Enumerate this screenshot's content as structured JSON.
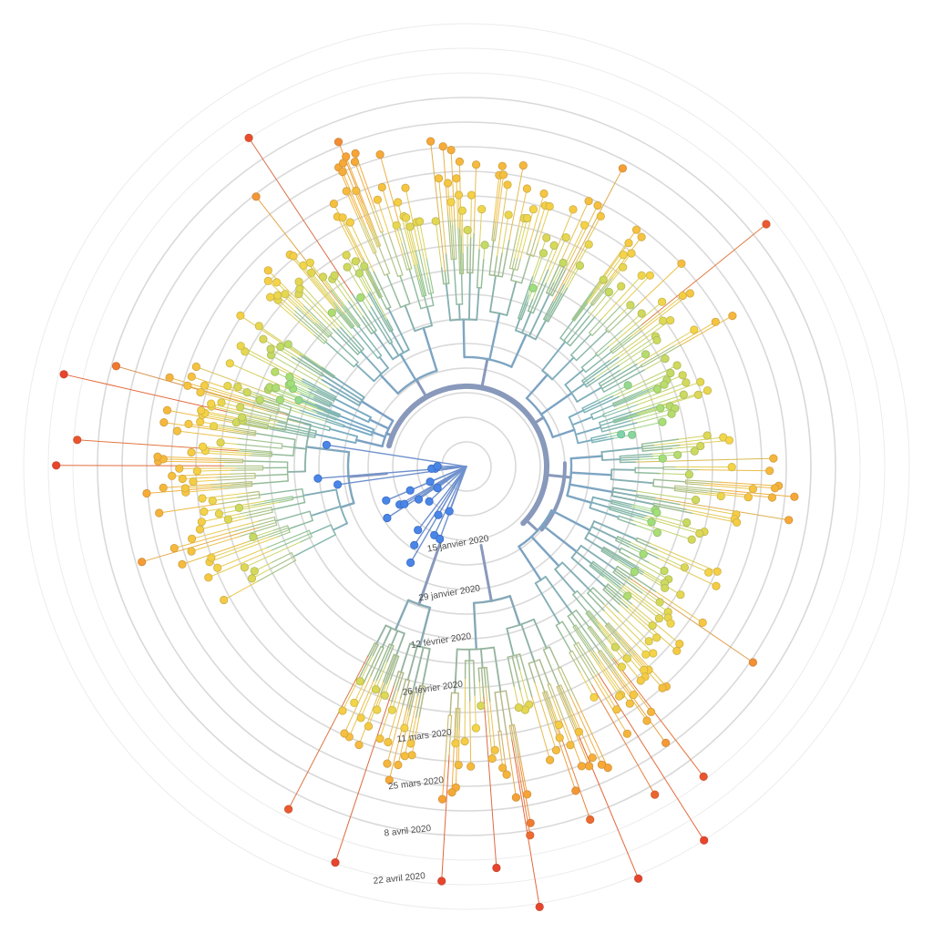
{
  "chart_data": {
    "type": "radial-phylogenetic-tree",
    "time_axis": {
      "ticks": [
        "15 janvier 2020",
        "29 janvier 2020",
        "12 février 2020",
        "26 février 2020",
        "11 mars 2020",
        "25 mars 2020",
        "8 avril 2020",
        "22 avril 2020"
      ]
    },
    "colors": {
      "backbone": "#8899bb",
      "early": "#4a86e8",
      "mid_early": "#5fc6d6",
      "mid": "#9fdf7a",
      "mid_late": "#f5d547",
      "late": "#f7a535",
      "latest": "#e8452c"
    }
  }
}
